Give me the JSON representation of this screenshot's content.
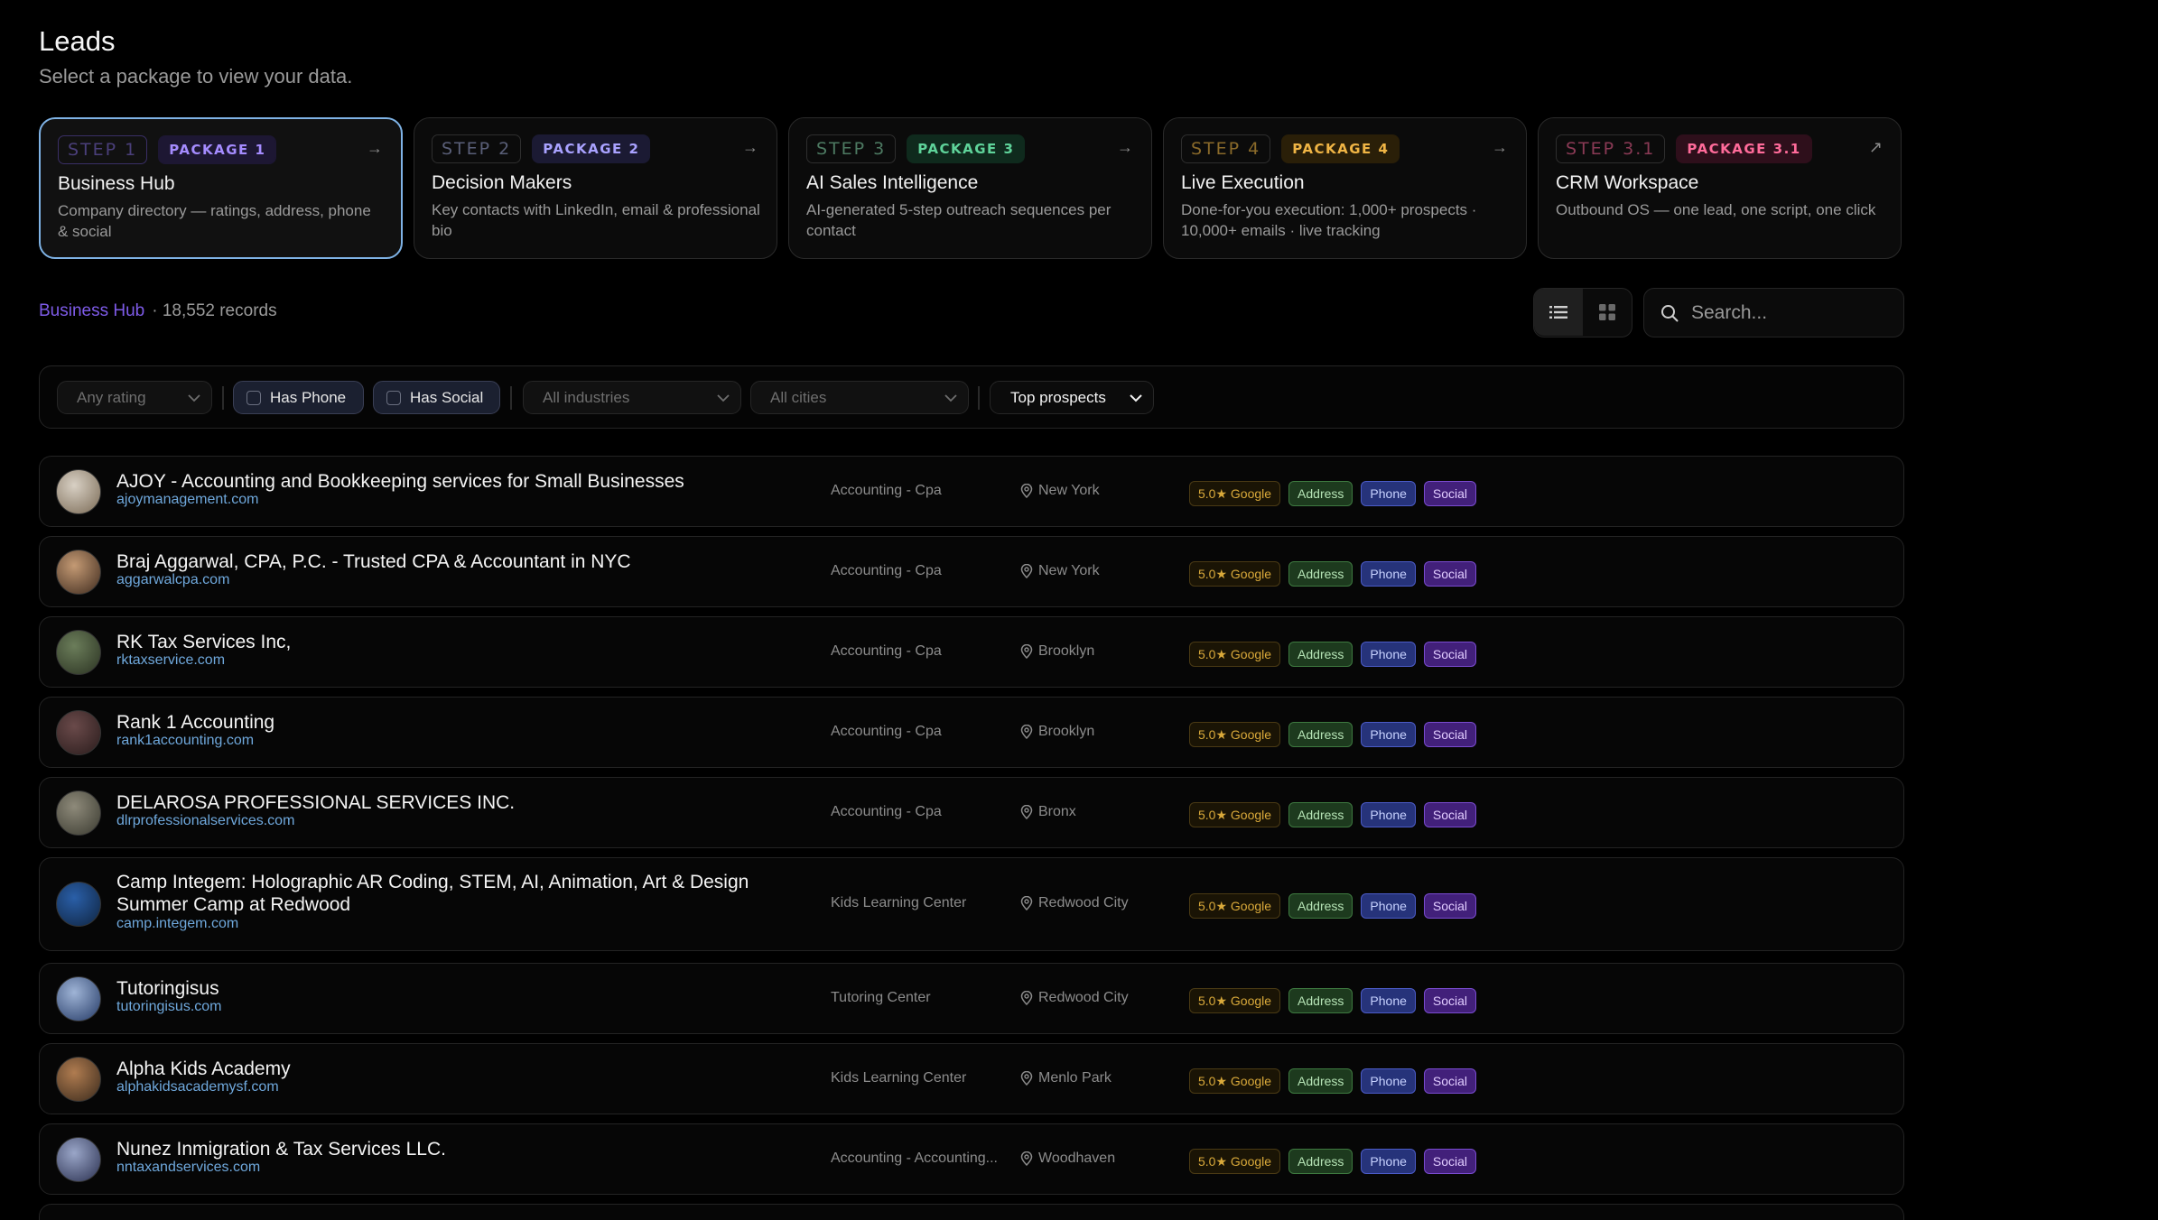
{
  "header": {
    "title": "Leads",
    "subtitle": "Select a package to view your data."
  },
  "packages": [
    {
      "step": "STEP 1",
      "package": "PACKAGE 1",
      "name": "Business Hub",
      "desc": "Company directory — ratings, address, phone & social",
      "arrow": "→",
      "step_color": "#4a3f7a",
      "pkg_color": "#a58cff",
      "pkg_bg": "#1d1733",
      "active": true
    },
    {
      "step": "STEP 2",
      "package": "PACKAGE 2",
      "name": "Decision Makers",
      "desc": "Key contacts with LinkedIn, email & professional bio",
      "arrow": "→",
      "step_color": "#5a5f78",
      "pkg_color": "#a9a2ff",
      "pkg_bg": "#1b1a33",
      "active": false
    },
    {
      "step": "STEP 3",
      "package": "PACKAGE 3",
      "name": "AI Sales Intelligence",
      "desc": "AI-generated 5-step outreach sequences per contact",
      "arrow": "→",
      "step_color": "#4d7a62",
      "pkg_color": "#5fd39a",
      "pkg_bg": "#0f2a1d",
      "active": false
    },
    {
      "step": "STEP 4",
      "package": "PACKAGE 4",
      "name": "Live Execution",
      "desc": "Done-for-you execution: 1,000+ prospects · 10,000+ emails · live tracking",
      "arrow": "→",
      "step_color": "#8a6a2a",
      "pkg_color": "#f0b545",
      "pkg_bg": "#2a1f08",
      "active": false
    },
    {
      "step": "STEP 3.1",
      "package": "PACKAGE 3.1",
      "name": "CRM Workspace",
      "desc": "Outbound OS — one lead, one script, one click",
      "arrow": "↗",
      "step_color": "#8a3a55",
      "pkg_color": "#ff6b9a",
      "pkg_bg": "#2e0f1b",
      "active": false
    }
  ],
  "summary": {
    "package_name": "Business Hub",
    "record_count": "· 18,552 records"
  },
  "search": {
    "placeholder": "Search..."
  },
  "filters": {
    "rating": "Any rating",
    "has_phone": "Has Phone",
    "has_social": "Has Social",
    "industries": "All industries",
    "cities": "All cities",
    "sort": "Top prospects"
  },
  "rows": [
    {
      "name": "AJOY - Accounting and Bookkeeping services for Small Businesses",
      "url": "ajoymanagement.com",
      "industry": "Accounting - Cpa",
      "city": "New York",
      "rating": "5.0★ Google",
      "tags": [
        "Address",
        "Phone",
        "Social"
      ]
    },
    {
      "name": "Braj Aggarwal, CPA, P.C. - Trusted CPA & Accountant in NYC",
      "url": "aggarwalcpa.com",
      "industry": "Accounting - Cpa",
      "city": "New York",
      "rating": "5.0★ Google",
      "tags": [
        "Address",
        "Phone",
        "Social"
      ]
    },
    {
      "name": "RK Tax Services Inc,",
      "url": "rktaxservice.com",
      "industry": "Accounting - Cpa",
      "city": "Brooklyn",
      "rating": "5.0★ Google",
      "tags": [
        "Address",
        "Phone",
        "Social"
      ]
    },
    {
      "name": "Rank 1 Accounting",
      "url": "rank1accounting.com",
      "industry": "Accounting - Cpa",
      "city": "Brooklyn",
      "rating": "5.0★ Google",
      "tags": [
        "Address",
        "Phone",
        "Social"
      ]
    },
    {
      "name": "DELAROSA PROFESSIONAL SERVICES INC.",
      "url": "dlrprofessionalservices.com",
      "industry": "Accounting - Cpa",
      "city": "Bronx",
      "rating": "5.0★ Google",
      "tags": [
        "Address",
        "Phone",
        "Social"
      ]
    },
    {
      "name": "Camp Integem: Holographic AR Coding, STEM, AI, Animation, Art & Design Summer Camp at Redwood",
      "url": "camp.integem.com",
      "industry": "Kids Learning Center",
      "city": "Redwood City",
      "rating": "5.0★ Google",
      "tags": [
        "Address",
        "Phone",
        "Social"
      ]
    },
    {
      "name": "Tutoringisus",
      "url": "tutoringisus.com",
      "industry": "Tutoring Center",
      "city": "Redwood City",
      "rating": "5.0★ Google",
      "tags": [
        "Address",
        "Phone",
        "Social"
      ]
    },
    {
      "name": "Alpha Kids Academy",
      "url": "alphakidsacademysf.com",
      "industry": "Kids Learning Center",
      "city": "Menlo Park",
      "rating": "5.0★ Google",
      "tags": [
        "Address",
        "Phone",
        "Social"
      ]
    },
    {
      "name": "Nunez Inmigration & Tax Services LLC.",
      "url": "nntaxandservices.com",
      "industry": "Accounting - Accounting...",
      "city": "Woodhaven",
      "rating": "5.0★ Google",
      "tags": [
        "Address",
        "Phone",
        "Social"
      ]
    }
  ]
}
